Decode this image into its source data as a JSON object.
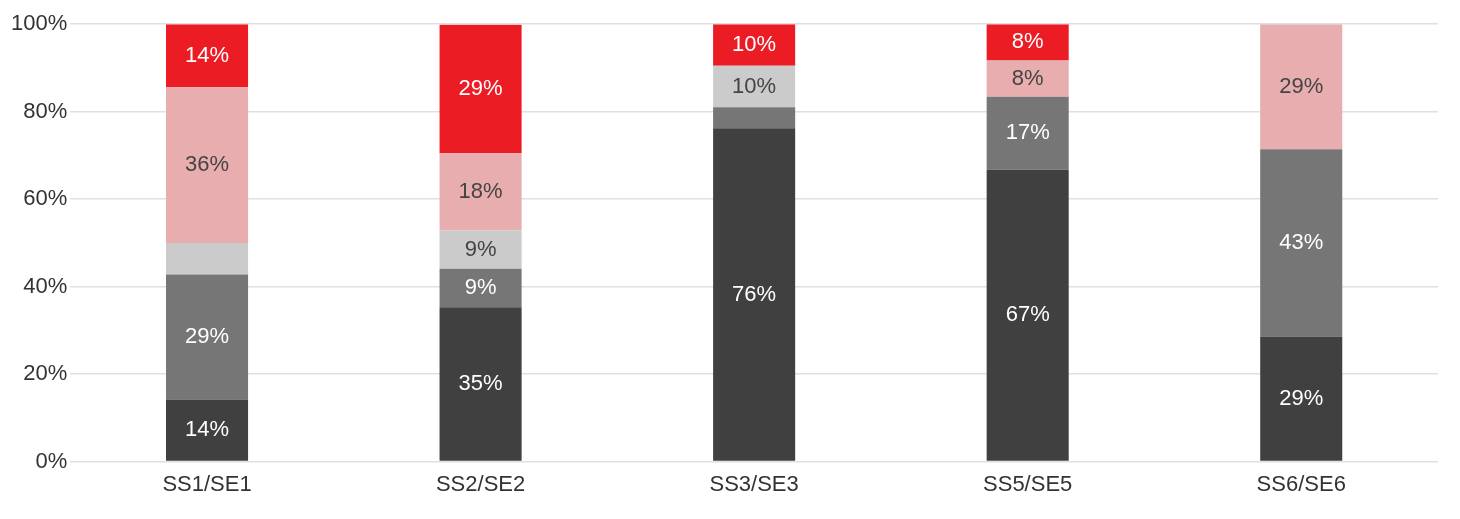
{
  "chart_data": {
    "type": "bar",
    "stacked": true,
    "categories": [
      "SS1/SE1",
      "SS2/SE2",
      "SS3/SE3",
      "SS5/SE5",
      "SS6/SE6"
    ],
    "series": [
      {
        "color": "#404040",
        "values": [
          14.2,
          35.3,
          76.2,
          66.7,
          28.6
        ],
        "value_labels": [
          "14%",
          "35%",
          "76%",
          "67%",
          "29%"
        ]
      },
      {
        "color": "#767676",
        "values": [
          28.6,
          8.8,
          4.8,
          16.7,
          42.8
        ],
        "value_labels": [
          "29%",
          "9%",
          null,
          "17%",
          "43%"
        ]
      },
      {
        "color": "#cbcbcb",
        "values": [
          7.2,
          8.8,
          9.5,
          null,
          null
        ],
        "value_labels": [
          null,
          "9%",
          "10%",
          null,
          null
        ]
      },
      {
        "color": "#e8adae",
        "values": [
          35.6,
          17.6,
          null,
          8.3,
          28.6
        ],
        "value_labels": [
          "36%",
          "18%",
          null,
          "8%",
          "29%"
        ]
      },
      {
        "color": "#ec1c24",
        "values": [
          14.4,
          29.4,
          9.5,
          8.3,
          null
        ],
        "value_labels": [
          "14%",
          "29%",
          "10%",
          "8%",
          null
        ]
      }
    ],
    "ylim": [
      0,
      100
    ],
    "yticks": [
      {
        "value": 0,
        "label": "0%"
      },
      {
        "value": 20,
        "label": "20%"
      },
      {
        "value": 40,
        "label": "40%"
      },
      {
        "value": 60,
        "label": "60%"
      },
      {
        "value": 80,
        "label": "80%"
      },
      {
        "value": 100,
        "label": "100%"
      }
    ],
    "grid": "y",
    "legend": false
  }
}
